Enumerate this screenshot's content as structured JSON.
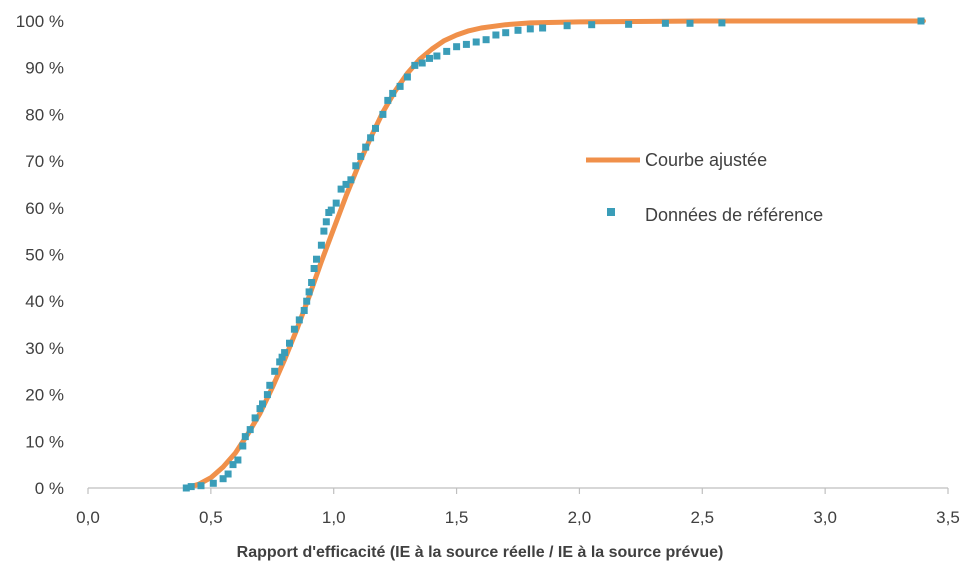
{
  "chart_data": {
    "type": "line",
    "xlabel": "Rapport d'efficacité (IE à la source réelle / IE à la source prévue)",
    "ylabel": "",
    "xlim": [
      0,
      3.5
    ],
    "ylim": [
      0,
      100
    ],
    "x_ticks": [
      0,
      0.5,
      1.0,
      1.5,
      2.0,
      2.5,
      3.0,
      3.5
    ],
    "x_tick_labels": [
      "0,0",
      "0,5",
      "1,0",
      "1,5",
      "2,0",
      "2,5",
      "3,0",
      "3,5"
    ],
    "y_ticks": [
      0,
      10,
      20,
      30,
      40,
      50,
      60,
      70,
      80,
      90,
      100
    ],
    "y_tick_labels": [
      "0 %",
      "10 %",
      "20 %",
      "30 %",
      "40 %",
      "50 %",
      "60 %",
      "70 %",
      "80 %",
      "90 %",
      "100 %"
    ],
    "grid": false,
    "legend_position": "right-center",
    "series": [
      {
        "name": "Courbe ajustée",
        "kind": "line",
        "color": "#F0904A",
        "x": [
          0.4,
          0.45,
          0.5,
          0.55,
          0.6,
          0.65,
          0.7,
          0.75,
          0.8,
          0.85,
          0.9,
          0.95,
          1.0,
          1.05,
          1.1,
          1.15,
          1.2,
          1.25,
          1.3,
          1.35,
          1.4,
          1.45,
          1.5,
          1.55,
          1.6,
          1.7,
          1.8,
          2.0,
          2.5,
          3.0,
          3.4
        ],
        "y": [
          0,
          0.8,
          2.2,
          4.5,
          7.5,
          11.5,
          16,
          21.5,
          27.5,
          34,
          41,
          48.5,
          55.5,
          62.5,
          69,
          75,
          80.5,
          85,
          88.8,
          91.8,
          94,
          95.8,
          97,
          97.9,
          98.5,
          99.2,
          99.6,
          99.8,
          100,
          100,
          100
        ]
      },
      {
        "name": "Données de référence",
        "kind": "scatter",
        "color": "#3A9DB8",
        "x": [
          0.4,
          0.42,
          0.46,
          0.51,
          0.55,
          0.57,
          0.59,
          0.61,
          0.63,
          0.64,
          0.66,
          0.68,
          0.7,
          0.71,
          0.73,
          0.74,
          0.76,
          0.78,
          0.79,
          0.8,
          0.82,
          0.84,
          0.86,
          0.88,
          0.89,
          0.9,
          0.91,
          0.92,
          0.93,
          0.95,
          0.96,
          0.97,
          0.98,
          0.99,
          1.01,
          1.03,
          1.05,
          1.07,
          1.09,
          1.11,
          1.13,
          1.15,
          1.17,
          1.2,
          1.22,
          1.24,
          1.27,
          1.3,
          1.33,
          1.36,
          1.39,
          1.42,
          1.46,
          1.5,
          1.54,
          1.58,
          1.62,
          1.66,
          1.7,
          1.75,
          1.8,
          1.85,
          1.95,
          2.05,
          2.2,
          2.35,
          2.45,
          2.58,
          3.39
        ],
        "y": [
          0,
          0.3,
          0.5,
          1,
          2,
          3,
          5,
          6,
          9,
          11,
          12.5,
          15,
          17,
          18,
          20,
          22,
          25,
          27,
          28,
          29,
          31,
          34,
          36,
          38,
          40,
          42,
          44,
          47,
          49,
          52,
          55,
          57,
          59,
          59.5,
          61,
          64,
          65,
          66,
          69,
          71,
          73,
          75,
          77,
          80,
          83,
          84.5,
          86,
          88,
          90.5,
          91,
          92,
          92.5,
          93.5,
          94.5,
          95,
          95.5,
          96,
          97,
          97.5,
          98,
          98.3,
          98.5,
          99,
          99.2,
          99.3,
          99.5,
          99.5,
          99.6,
          100
        ]
      }
    ]
  }
}
